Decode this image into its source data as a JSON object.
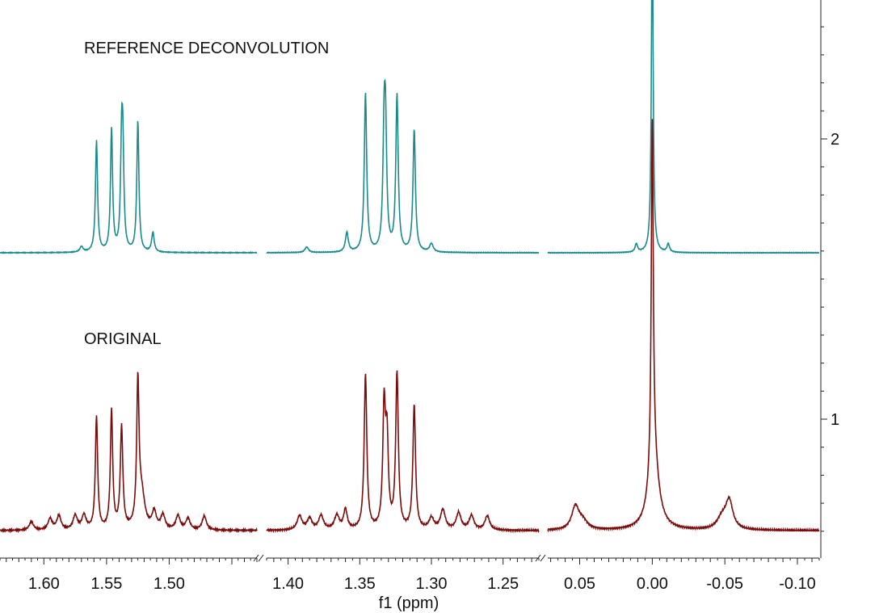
{
  "chart_data": {
    "type": "line",
    "title": "",
    "xlabel": "f1 (ppm)",
    "ylabel": "",
    "x_reversed": true,
    "x_segments": [
      {
        "from": 1.635,
        "to": 1.43,
        "ticks": [
          1.6,
          1.55,
          1.5
        ],
        "tick_labels": [
          "1.60",
          "1.55",
          "1.50"
        ]
      },
      {
        "from": 1.415,
        "to": 1.225,
        "ticks": [
          1.4,
          1.35,
          1.3,
          1.25
        ],
        "tick_labels": [
          "1.40",
          "1.35",
          "1.30",
          "1.25"
        ]
      },
      {
        "from": 0.072,
        "to": -0.115,
        "ticks": [
          0.05,
          0.0,
          -0.05,
          -0.1
        ],
        "tick_labels": [
          "0.05",
          "0.00",
          "-0.05",
          "-0.10"
        ]
      }
    ],
    "y_axis": {
      "position": "right",
      "ticks": [
        1,
        2
      ],
      "tick_labels": [
        "1",
        "2"
      ]
    },
    "grid": false,
    "legend": "none",
    "series": [
      {
        "label": "REFERENCE DECONVOLUTION",
        "color": "#1b8a8a",
        "baseline": 0.0,
        "peaks": [
          {
            "x": 1.558,
            "h": 0.4,
            "w": 0.001
          },
          {
            "x": 1.546,
            "h": 0.44,
            "w": 0.001
          },
          {
            "x": 1.538,
            "h": 0.33,
            "w": 0.001
          },
          {
            "x": 1.537,
            "h": 0.33,
            "w": 0.001
          },
          {
            "x": 1.525,
            "h": 0.47,
            "w": 0.001
          },
          {
            "x": 1.513,
            "h": 0.07,
            "w": 0.0012
          },
          {
            "x": 1.57,
            "h": 0.02,
            "w": 0.0015
          },
          {
            "x": 1.359,
            "h": 0.07,
            "w": 0.0012
          },
          {
            "x": 1.346,
            "h": 0.57,
            "w": 0.001
          },
          {
            "x": 1.333,
            "h": 0.38,
            "w": 0.001
          },
          {
            "x": 1.332,
            "h": 0.38,
            "w": 0.001
          },
          {
            "x": 1.324,
            "h": 0.56,
            "w": 0.001
          },
          {
            "x": 1.312,
            "h": 0.44,
            "w": 0.001
          },
          {
            "x": 1.3,
            "h": 0.03,
            "w": 0.0015
          },
          {
            "x": 1.387,
            "h": 0.02,
            "w": 0.0015
          },
          {
            "x": 0.0,
            "h": 1.22,
            "w": 0.0007
          },
          {
            "x": 0.011,
            "h": 0.03,
            "w": 0.001
          },
          {
            "x": -0.011,
            "h": 0.03,
            "w": 0.001
          }
        ]
      },
      {
        "label": "ORIGINAL",
        "color": "#7a0c0c",
        "baseline": 0.0,
        "peaks": [
          {
            "x": 1.558,
            "h": 0.4,
            "w": 0.0011
          },
          {
            "x": 1.546,
            "h": 0.42,
            "w": 0.0011
          },
          {
            "x": 1.538,
            "h": 0.36,
            "w": 0.0012
          },
          {
            "x": 1.525,
            "h": 0.5,
            "w": 0.0011
          },
          {
            "x": 1.522,
            "h": 0.12,
            "w": 0.003
          },
          {
            "x": 1.61,
            "h": 0.03,
            "w": 0.002
          },
          {
            "x": 1.595,
            "h": 0.04,
            "w": 0.002
          },
          {
            "x": 1.588,
            "h": 0.05,
            "w": 0.002
          },
          {
            "x": 1.575,
            "h": 0.05,
            "w": 0.002
          },
          {
            "x": 1.568,
            "h": 0.05,
            "w": 0.002
          },
          {
            "x": 1.512,
            "h": 0.06,
            "w": 0.002
          },
          {
            "x": 1.505,
            "h": 0.05,
            "w": 0.002
          },
          {
            "x": 1.493,
            "h": 0.05,
            "w": 0.002
          },
          {
            "x": 1.485,
            "h": 0.04,
            "w": 0.002
          },
          {
            "x": 1.472,
            "h": 0.05,
            "w": 0.002
          },
          {
            "x": 1.346,
            "h": 0.55,
            "w": 0.0011
          },
          {
            "x": 1.333,
            "h": 0.42,
            "w": 0.0011
          },
          {
            "x": 1.331,
            "h": 0.3,
            "w": 0.0011
          },
          {
            "x": 1.324,
            "h": 0.55,
            "w": 0.0011
          },
          {
            "x": 1.312,
            "h": 0.44,
            "w": 0.0011
          },
          {
            "x": 1.36,
            "h": 0.07,
            "w": 0.0015
          },
          {
            "x": 1.392,
            "h": 0.05,
            "w": 0.002
          },
          {
            "x": 1.385,
            "h": 0.04,
            "w": 0.002
          },
          {
            "x": 1.377,
            "h": 0.05,
            "w": 0.002
          },
          {
            "x": 1.366,
            "h": 0.05,
            "w": 0.002
          },
          {
            "x": 1.3,
            "h": 0.04,
            "w": 0.002
          },
          {
            "x": 1.292,
            "h": 0.07,
            "w": 0.002
          },
          {
            "x": 1.281,
            "h": 0.06,
            "w": 0.002
          },
          {
            "x": 1.272,
            "h": 0.05,
            "w": 0.002
          },
          {
            "x": 1.261,
            "h": 0.05,
            "w": 0.002
          },
          {
            "x": 0.0,
            "h": 1.23,
            "w": 0.0008
          },
          {
            "x": -0.001,
            "h": 0.25,
            "w": 0.004
          },
          {
            "x": 0.053,
            "h": 0.08,
            "w": 0.003
          },
          {
            "x": 0.048,
            "h": 0.03,
            "w": 0.004
          },
          {
            "x": -0.053,
            "h": 0.1,
            "w": 0.003
          },
          {
            "x": -0.048,
            "h": 0.04,
            "w": 0.004
          }
        ]
      }
    ]
  }
}
